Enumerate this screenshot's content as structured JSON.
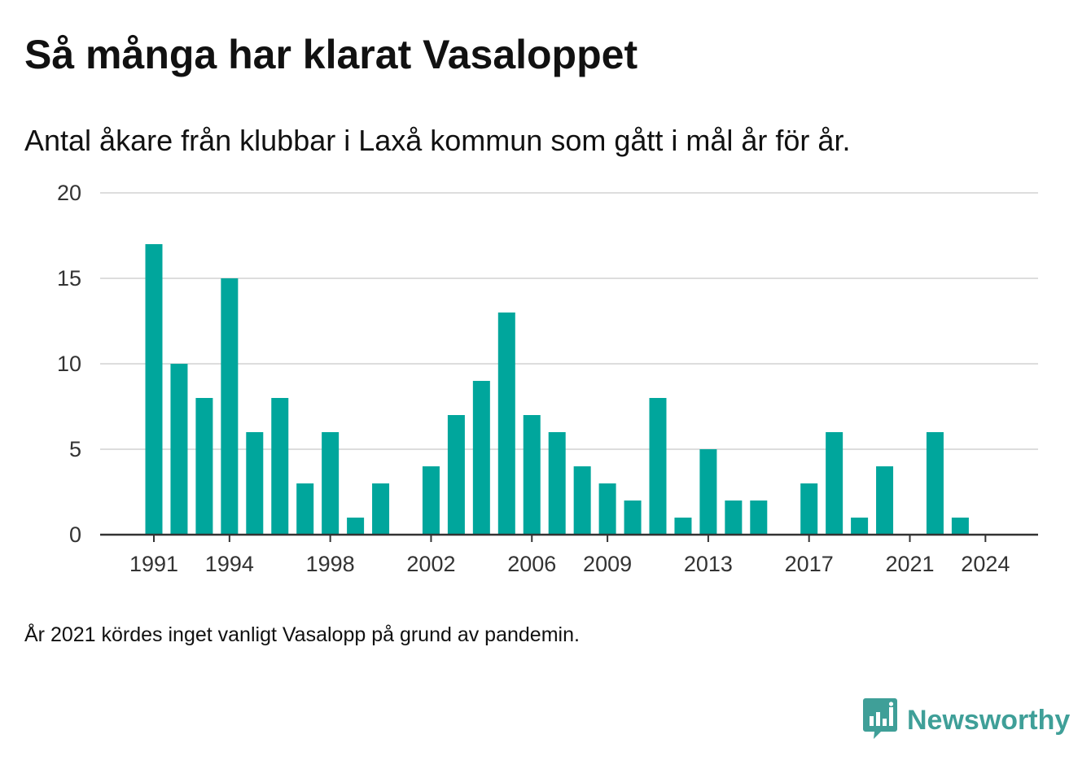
{
  "header": {
    "title": "Så många har klarat Vasaloppet",
    "subtitle": "Antal åkare från klubbar i Laxå kommun som gått i mål år för år."
  },
  "footer": {
    "note": "År 2021 kördes inget vanligt Vasalopp på grund av pandemin.",
    "brand": "Newsworthy",
    "brand_icon": "bar-chart-logo-icon"
  },
  "colors": {
    "bar": "#00a69c",
    "brand": "#3f9f98",
    "grid": "#dddddd",
    "axis": "#333333"
  },
  "chart_data": {
    "type": "bar",
    "title": "Så många har klarat Vasaloppet",
    "subtitle": "Antal åkare från klubbar i Laxå kommun som gått i mål år för år.",
    "xlabel": "",
    "ylabel": "",
    "x": [
      1991,
      1992,
      1993,
      1994,
      1995,
      1996,
      1997,
      1998,
      1999,
      2000,
      2001,
      2002,
      2003,
      2004,
      2005,
      2006,
      2007,
      2008,
      2009,
      2010,
      2011,
      2012,
      2013,
      2014,
      2015,
      2016,
      2017,
      2018,
      2019,
      2020,
      2021,
      2022,
      2023,
      2024
    ],
    "values": [
      17,
      10,
      8,
      15,
      6,
      8,
      3,
      6,
      1,
      3,
      0,
      4,
      7,
      9,
      13,
      7,
      6,
      4,
      3,
      2,
      8,
      1,
      5,
      2,
      2,
      0,
      3,
      6,
      1,
      4,
      0,
      6,
      1,
      0
    ],
    "xtick_labels": [
      "1991",
      "1994",
      "1998",
      "2002",
      "2006",
      "2009",
      "2013",
      "2017",
      "2021",
      "2024"
    ],
    "yticks": [
      0,
      5,
      10,
      15,
      20
    ],
    "ylim": [
      0,
      20
    ],
    "grid": true,
    "legend": "none"
  }
}
